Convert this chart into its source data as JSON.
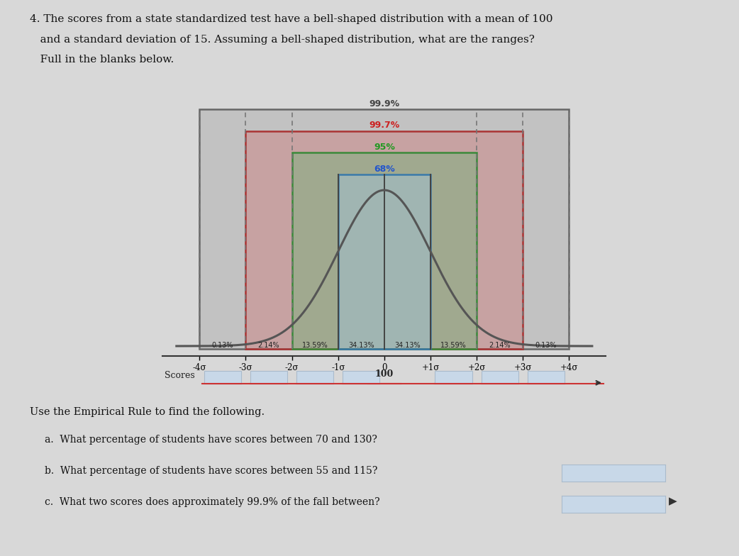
{
  "title_line1": "4. The scores from a state standardized test have a bell-shaped distribution with a mean of 100",
  "title_line2": "   and a standard deviation of 15. Assuming a bell-shaped distribution, what are the ranges?",
  "title_line3": "   Full in the blanks below.",
  "sigma_labels": [
    "-4σ",
    "-3σ",
    "-2σ",
    "-1σ",
    "0",
    "+1σ",
    "+2σ",
    "+3σ",
    "+4σ"
  ],
  "pct_labels": [
    "0.13%",
    "2.14%",
    "13.59%",
    "34.13%",
    "34.13%",
    "13.59%",
    "2.14%",
    "0.13%"
  ],
  "band_labels": [
    "68%",
    "95%",
    "99.7%",
    "99.9%"
  ],
  "band_colors_fill": [
    "#a0c0d0",
    "#80b080",
    "#cc8888",
    "#b0b0b0"
  ],
  "band_edge_colors": [
    "#3a7aaa",
    "#3a8a3a",
    "#aa3333",
    "#666666"
  ],
  "band_label_colors": [
    "#2255cc",
    "#229922",
    "#cc2222",
    "#444444"
  ],
  "bg_color": "#d8d8d8",
  "plot_bg": "#d8d8d8",
  "curve_color": "#555555",
  "vline_solid_color": "#444444",
  "vline_dashed_color": "#777777",
  "scores_label": "Scores",
  "score_center": "100",
  "q_text1": "Use the Empirical Rule to find the following.",
  "q_a": "a.  What percentage of students have scores between 70 and 130?",
  "q_b": "b.  What percentage of students have scores between 55 and 115?",
  "q_c": "c.  What two scores does approximately 99.9% of the fall between?",
  "blank_fill": "#c8d8e8",
  "blank_edge": "#aabbcc"
}
